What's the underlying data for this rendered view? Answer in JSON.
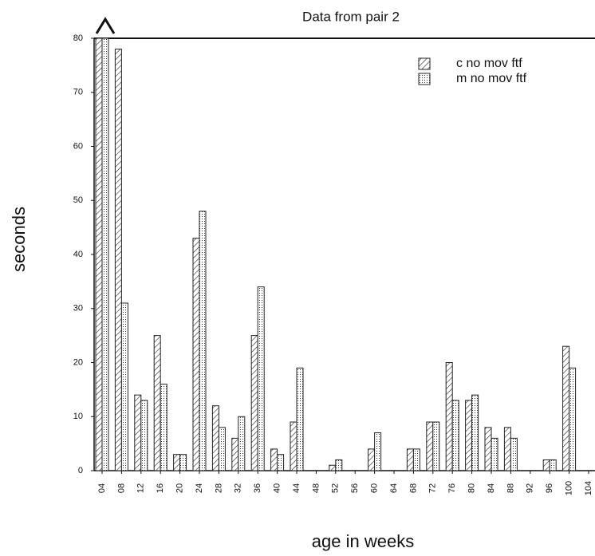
{
  "chart_data": {
    "type": "bar",
    "title": "Data from pair 2",
    "x_label": "age in weeks",
    "y_label": "seconds",
    "categories": [
      "04",
      "08",
      "12",
      "16",
      "20",
      "24",
      "28",
      "32",
      "36",
      "40",
      "44",
      "48",
      "52",
      "56",
      "60",
      "64",
      "68",
      "72",
      "76",
      "80",
      "84",
      "88",
      "92",
      "96",
      "100",
      "104"
    ],
    "series": [
      {
        "name": "c no mov ftf",
        "color": "#222222",
        "values": [
          80,
          78,
          14,
          25,
          3,
          43,
          12,
          6,
          25,
          4,
          9,
          0,
          1,
          0,
          4,
          0,
          4,
          9,
          20,
          13,
          8,
          8,
          0,
          2,
          23,
          0
        ]
      },
      {
        "name": "m no mov ftf",
        "color": "#222222",
        "values": [
          80,
          31,
          13,
          16,
          3,
          48,
          8,
          10,
          34,
          3,
          19,
          0,
          2,
          0,
          7,
          0,
          4,
          9,
          13,
          14,
          6,
          6,
          0,
          2,
          19,
          0
        ]
      }
    ],
    "ylim": [
      0,
      80
    ],
    "yticks": [
      0,
      10,
      20,
      30,
      40,
      50,
      60,
      70,
      80
    ],
    "legend": "top-right"
  }
}
